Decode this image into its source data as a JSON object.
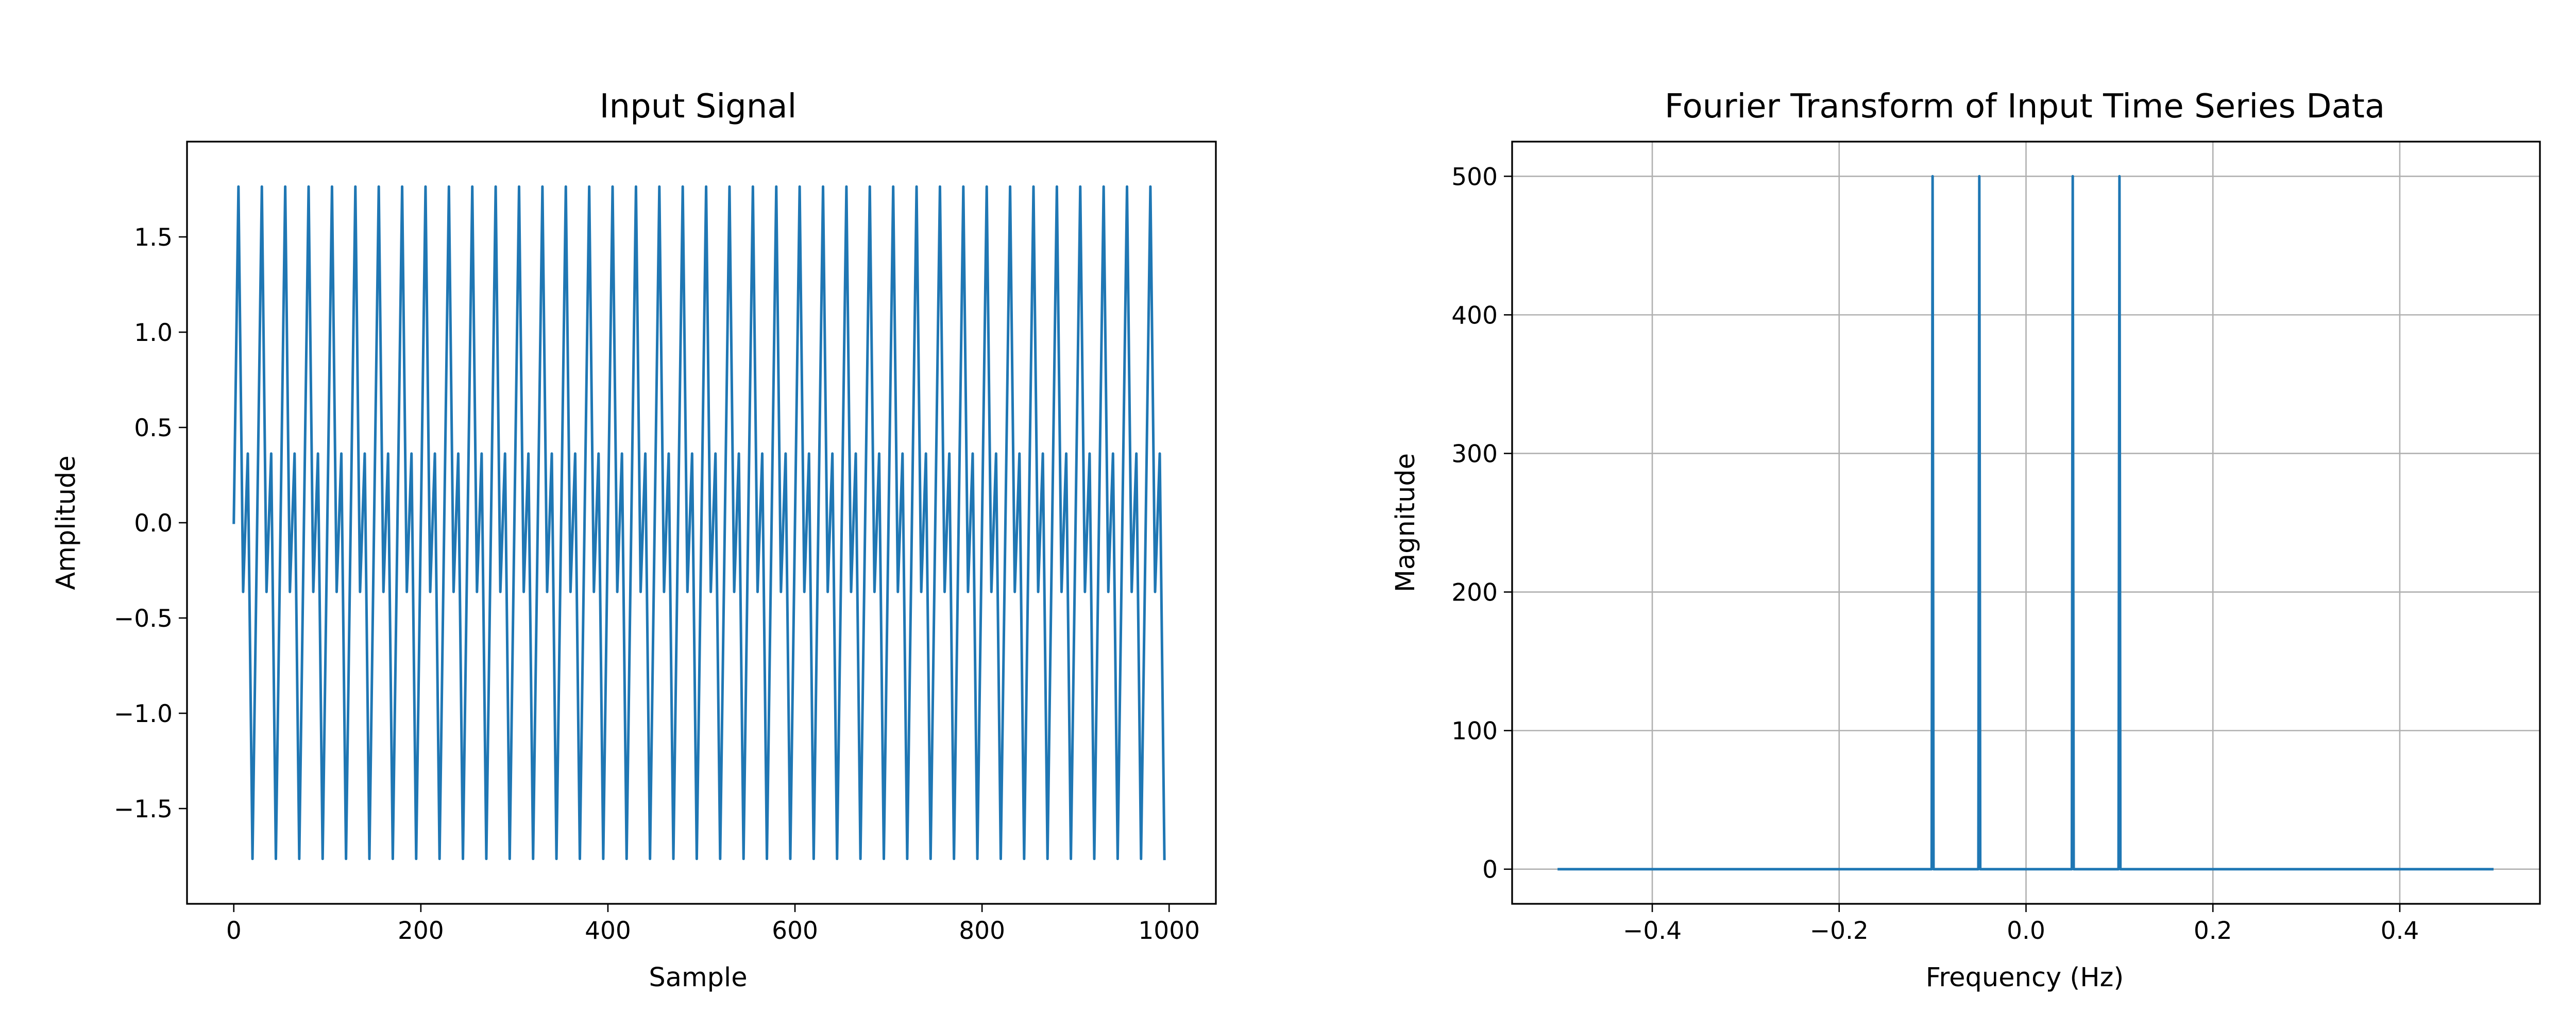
{
  "chart_data": [
    {
      "type": "line",
      "title": "Input Signal",
      "xlabel": "Sample",
      "ylabel": "Amplitude",
      "grid": false,
      "xlim": [
        -50,
        1050
      ],
      "ylim": [
        -2.0,
        2.0
      ],
      "xticks": [
        0,
        200,
        400,
        600,
        800,
        1000
      ],
      "xtick_labels": [
        "0",
        "200",
        "400",
        "600",
        "800",
        "1000"
      ],
      "yticks": [
        -1.5,
        -1.0,
        -0.5,
        0.0,
        0.5,
        1.0,
        1.5
      ],
      "ytick_labels": [
        "−1.5",
        "−1.0",
        "−0.5",
        "0.0",
        "0.5",
        "1.0",
        "1.5"
      ],
      "series": [
        {
          "color": "#1f77b4",
          "description": "sum of two sinusoids, period 20 and 10 samples; sampled every 5 samples",
          "x_start": 0,
          "x_step": 5,
          "cycle": [
            0.0,
            1.764,
            -0.363,
            0.363,
            -1.764
          ],
          "length": 200
        }
      ]
    },
    {
      "type": "line",
      "title": "Fourier Transform of Input Time Series Data",
      "xlabel": "Frequency (Hz)",
      "ylabel": "Magnitude",
      "grid": true,
      "xlim": [
        -0.55,
        0.55
      ],
      "ylim": [
        -25,
        525
      ],
      "xticks": [
        -0.4,
        -0.2,
        0.0,
        0.2,
        0.4
      ],
      "xtick_labels": [
        "−0.4",
        "−0.2",
        "0.0",
        "0.2",
        "0.4"
      ],
      "yticks": [
        0,
        100,
        200,
        300,
        400,
        500
      ],
      "ytick_labels": [
        "0",
        "100",
        "200",
        "300",
        "400",
        "500"
      ],
      "series": [
        {
          "color": "#1f77b4",
          "x": [
            -0.5,
            -0.101,
            -0.1,
            -0.099,
            -0.051,
            -0.05,
            -0.049,
            0.049,
            0.05,
            0.051,
            0.099,
            0.1,
            0.101,
            0.499
          ],
          "y": [
            0,
            0,
            500,
            0,
            0,
            500,
            0,
            0,
            500,
            0,
            0,
            500,
            0,
            0
          ]
        }
      ]
    }
  ]
}
